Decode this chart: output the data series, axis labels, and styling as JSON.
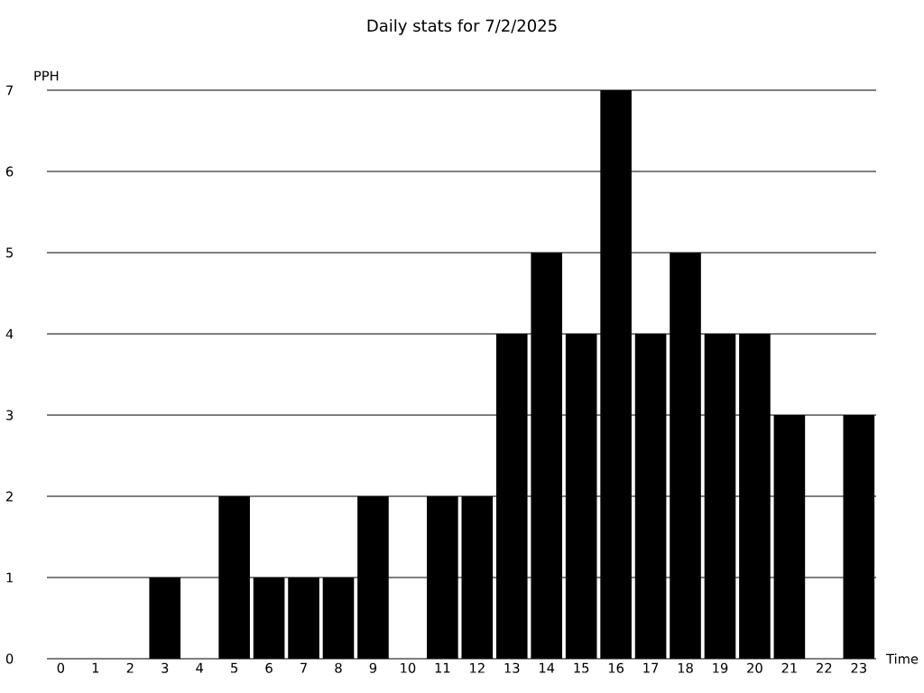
{
  "chart_data": {
    "type": "bar",
    "title": "Daily stats for 7/2/2025",
    "xlabel": "Time",
    "ylabel": "PPH",
    "categories": [
      "0",
      "1",
      "2",
      "3",
      "4",
      "5",
      "6",
      "7",
      "8",
      "9",
      "10",
      "11",
      "12",
      "13",
      "14",
      "15",
      "16",
      "17",
      "18",
      "19",
      "20",
      "21",
      "22",
      "23"
    ],
    "values": [
      0,
      0,
      0,
      1,
      0,
      2,
      1,
      1,
      1,
      2,
      0,
      2,
      2,
      4,
      5,
      4,
      7,
      4,
      5,
      4,
      4,
      3,
      0,
      3
    ],
    "color": "#000000",
    "ylim": [
      0,
      7
    ],
    "yticks": [
      0,
      1,
      2,
      3,
      4,
      5,
      6,
      7
    ],
    "grid": "y"
  }
}
